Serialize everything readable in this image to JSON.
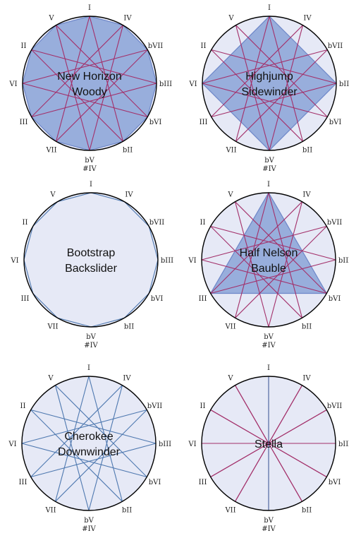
{
  "colors": {
    "fill": "#e6e9f6",
    "shape": "#98aedc",
    "shape_edge": "#6d86c8",
    "magenta": "#a3306a",
    "blue": "#4f79b0",
    "circle": "#000000"
  },
  "note_labels": [
    "I",
    "IV",
    "bVII",
    "bIII",
    "bVI",
    "bII",
    "bV",
    "VII",
    "III",
    "VI",
    "II",
    "V"
  ],
  "sharp_label": "#IV",
  "panels": [
    {
      "id": "new-horizon-woody",
      "name_lines": [
        "New Horizon",
        "Woody"
      ],
      "show_sharp": true,
      "filled_polygons": [
        [
          0,
          1,
          2,
          3,
          4,
          5,
          6,
          7,
          8,
          9,
          10,
          11
        ]
      ],
      "line_sets": [
        {
          "color": "magenta",
          "step": 5
        }
      ]
    },
    {
      "id": "highjump-sidewinder",
      "name_lines": [
        "Highjump",
        "Sidewinder"
      ],
      "show_sharp": true,
      "filled_polygons": [
        [
          0,
          3,
          6,
          9
        ]
      ],
      "line_sets": [
        {
          "color": "magenta",
          "step": 5
        }
      ]
    },
    {
      "id": "bootstrap-backslider",
      "name_lines": [
        "Bootstrap",
        "Backslider"
      ],
      "show_sharp": true,
      "filled_polygons": [],
      "line_sets": [
        {
          "color": "blue",
          "step": 1
        }
      ]
    },
    {
      "id": "half-nelson-bauble",
      "name_lines": [
        "Half Nelson",
        "Bauble"
      ],
      "show_sharp": true,
      "filled_polygons": [
        [
          0,
          4,
          8
        ]
      ],
      "line_sets": [
        {
          "color": "magenta",
          "step": 5
        }
      ]
    },
    {
      "id": "cherokee-downwinder",
      "name_lines": [
        "Cherokee",
        "Downwinder"
      ],
      "show_sharp": true,
      "filled_polygons": [],
      "line_sets": [
        {
          "color": "blue",
          "step": 5
        }
      ]
    },
    {
      "id": "stella",
      "name_lines": [
        "Stella"
      ],
      "show_sharp": true,
      "filled_polygons": [],
      "line_sets": [
        {
          "color": "magenta",
          "step": 6
        },
        {
          "color": "blue",
          "step": 6,
          "only": [
            0
          ]
        }
      ]
    }
  ]
}
